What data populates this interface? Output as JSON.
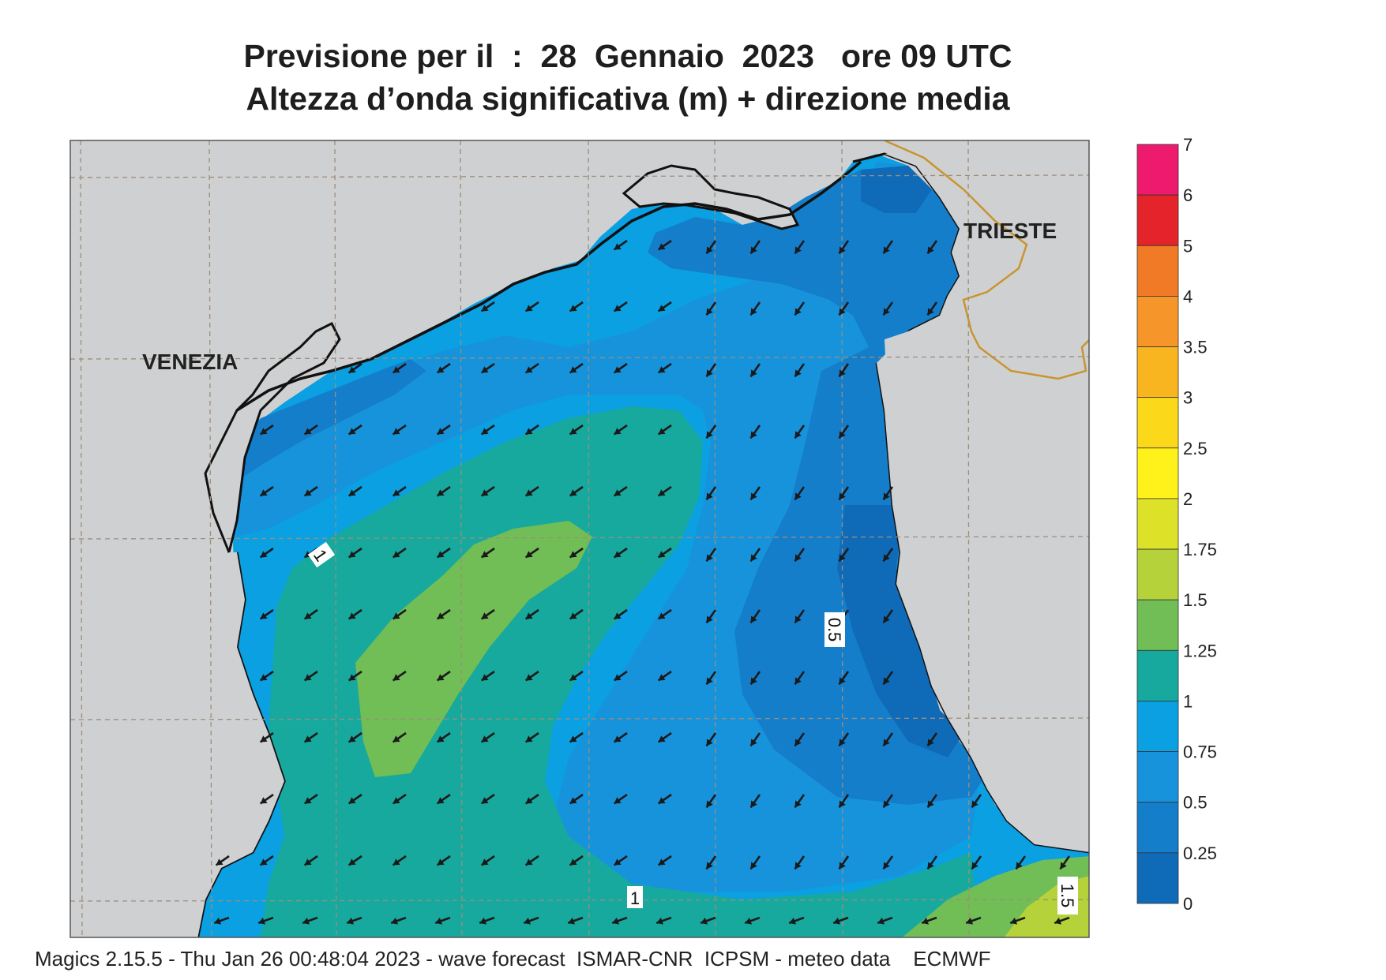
{
  "title": {
    "line1": "Previsione per il  :  28  Gennaio  2023   ore 09 UTC",
    "line2": "Altezza d’onda significativa (m) + direzione media"
  },
  "map": {
    "labels": {
      "venezia": "VENEZIA",
      "trieste": "TRIESTE"
    },
    "contour_labels": [
      "1",
      "0.5",
      "1",
      "1.5"
    ],
    "land_color": "#cfd0d2",
    "coastline_color": "#111111",
    "border_color": "#c8952e",
    "arrow_color": "#1a1a1a"
  },
  "legend": {
    "labels": [
      "7",
      "6",
      "5",
      "4",
      "3.5",
      "3",
      "2.5",
      "2",
      "1.75",
      "1.5",
      "1.25",
      "1",
      "0.75",
      "0.5",
      "0.25",
      "0"
    ],
    "colors": [
      "#ee1a6e",
      "#e4232a",
      "#f07a26",
      "#f6962a",
      "#f9b51f",
      "#fbd91a",
      "#fff21a",
      "#dde128",
      "#b5d23a",
      "#71bd56",
      "#17a99e",
      "#0aa0e2",
      "#1793dc",
      "#157ecb",
      "#0f6bb8"
    ]
  },
  "footer": "Magics 2.15.5 - Thu Jan 26 00:48:04 2023 - wave forecast  ISMAR-CNR  ICPSM - meteo data    ECMWF"
}
